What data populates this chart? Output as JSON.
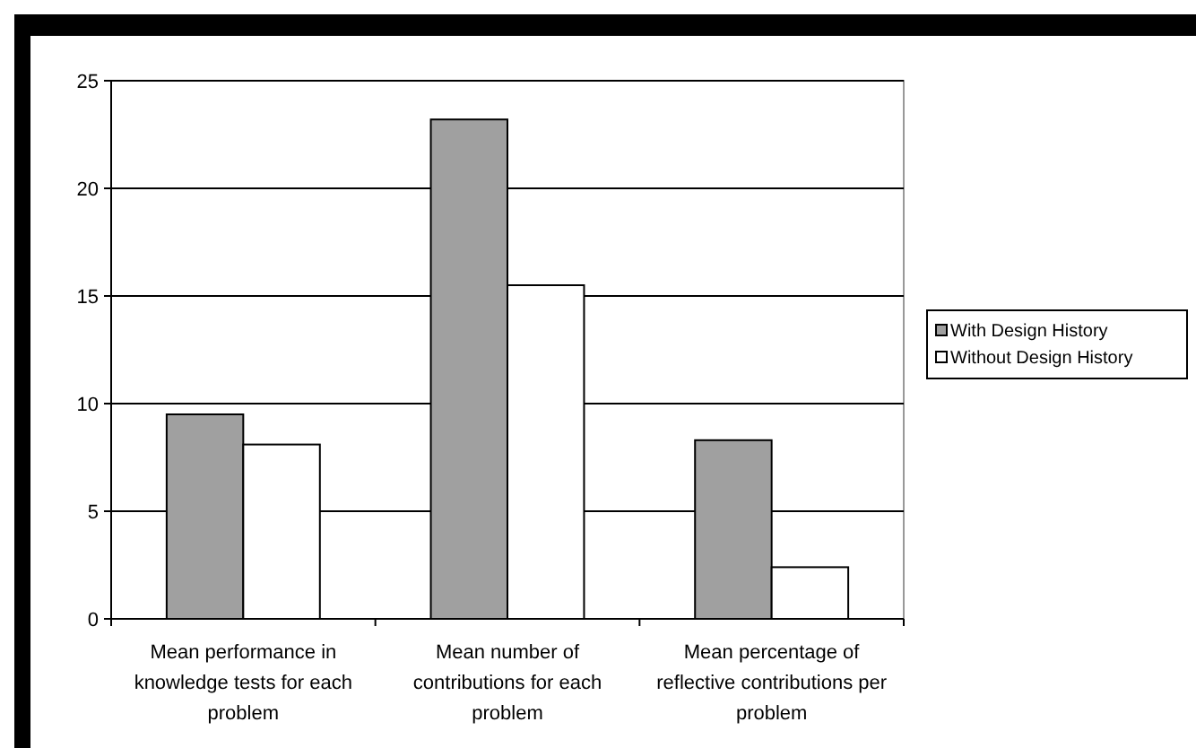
{
  "chart_data": {
    "type": "bar",
    "categories": [
      "Mean performance in knowledge tests for each problem",
      "Mean number of contributions for each problem",
      "Mean percentage of reflective contributions per problem"
    ],
    "series": [
      {
        "name": "With Design History",
        "color": "#a0a0a0",
        "values": [
          9.5,
          23.2,
          8.3
        ]
      },
      {
        "name": "Without Design History",
        "color": "#ffffff",
        "values": [
          8.1,
          15.5,
          2.4
        ]
      }
    ],
    "ylim": [
      0,
      25
    ],
    "yticks": [
      0,
      5,
      10,
      15,
      20,
      25
    ],
    "grid": "y",
    "legend": "right"
  }
}
